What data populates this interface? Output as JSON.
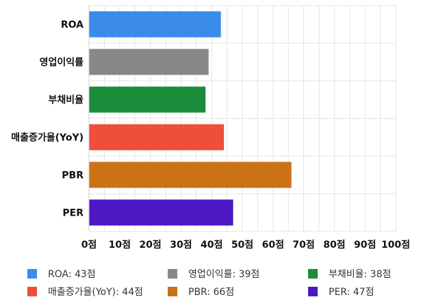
{
  "chart_data": {
    "type": "bar",
    "orientation": "horizontal",
    "categories": [
      "ROA",
      "영업이익률",
      "부채비율",
      "매출증가율(YoY)",
      "PBR",
      "PER"
    ],
    "values": [
      43,
      39,
      38,
      44,
      66,
      47
    ],
    "colors": [
      "#3b8beb",
      "#888888",
      "#1a8c3a",
      "#ee4e3a",
      "#cc7216",
      "#4b18c4"
    ],
    "title": "",
    "xlabel": "",
    "ylabel": "",
    "xlim": [
      0,
      100
    ],
    "xticks": [
      0,
      10,
      20,
      30,
      40,
      50,
      60,
      70,
      80,
      90,
      100
    ],
    "xtick_labels": [
      "0점",
      "10점",
      "20점",
      "30점",
      "40점",
      "50점",
      "60점",
      "70점",
      "80점",
      "90점",
      "100점"
    ],
    "grid": true,
    "legend_placement": "bottom"
  },
  "legend": {
    "items": [
      {
        "label": "ROA: 43점",
        "color": "#3b8beb"
      },
      {
        "label": "영업이익률: 39점",
        "color": "#888888"
      },
      {
        "label": "부채비율: 38점",
        "color": "#1a8c3a"
      },
      {
        "label": "매출증가율(YoY): 44점",
        "color": "#ee4e3a"
      },
      {
        "label": "PBR: 66점",
        "color": "#cc7216"
      },
      {
        "label": "PER: 47점",
        "color": "#4b18c4"
      }
    ]
  }
}
